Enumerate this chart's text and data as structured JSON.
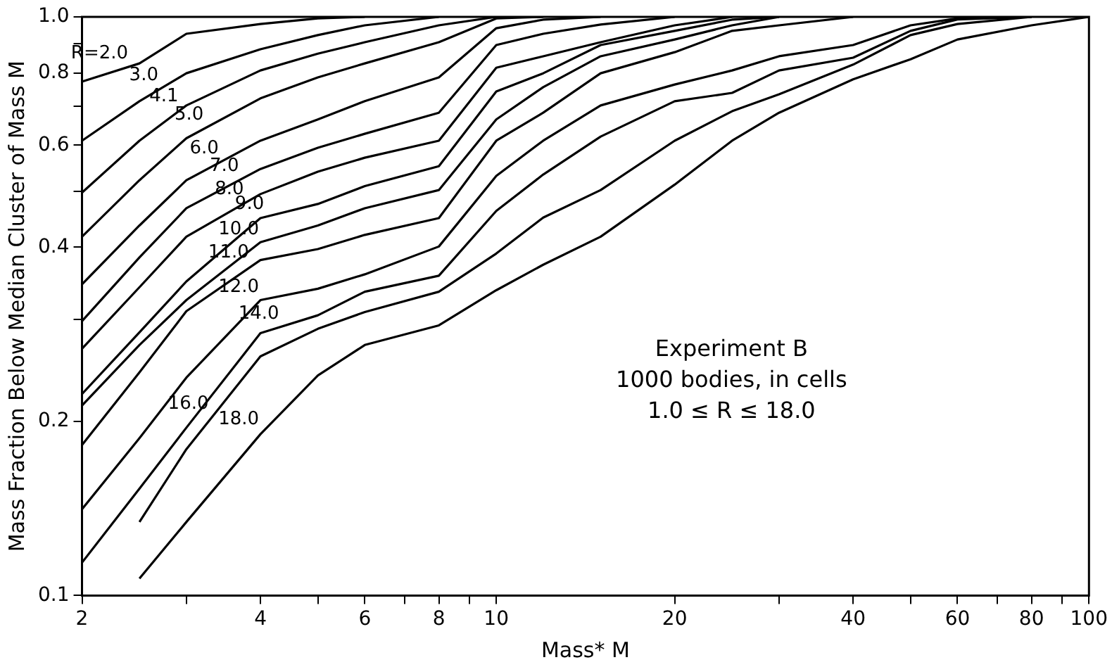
{
  "chart_data": {
    "type": "line",
    "xlabel": "Mass* M",
    "ylabel": "Mass Fraction Below Median Cluster of Mass M",
    "x": [
      2,
      2.5,
      3,
      4,
      5,
      6,
      8,
      10,
      12,
      15,
      20,
      25,
      30,
      40,
      50,
      60,
      80,
      100
    ],
    "series": [
      {
        "name": "R=2.0",
        "color": "#000000",
        "values": [
          0.773,
          0.831,
          0.935,
          0.972,
          0.994,
          1.0,
          null,
          null,
          null,
          null,
          null,
          null,
          null,
          null,
          null,
          null,
          null,
          null
        ]
      },
      {
        "name": "3.0",
        "color": "#000000",
        "values": [
          0.611,
          0.715,
          0.799,
          0.879,
          0.93,
          0.967,
          1.0,
          null,
          null,
          null,
          null,
          null,
          null,
          null,
          null,
          null,
          null,
          null
        ]
      },
      {
        "name": "4.1",
        "color": "#000000",
        "values": [
          0.497,
          0.611,
          0.703,
          0.808,
          0.864,
          0.904,
          0.967,
          1.0,
          null,
          null,
          null,
          null,
          null,
          null,
          null,
          null,
          null,
          null
        ]
      },
      {
        "name": "5.0",
        "color": "#000000",
        "values": [
          0.417,
          0.522,
          0.617,
          0.723,
          0.786,
          0.831,
          0.904,
          0.994,
          1.0,
          null,
          null,
          null,
          null,
          null,
          null,
          null,
          null,
          null
        ]
      },
      {
        "name": "6.0",
        "color": "#000000",
        "values": [
          0.345,
          0.436,
          0.522,
          0.611,
          0.665,
          0.715,
          0.786,
          0.956,
          0.989,
          1.0,
          null,
          null,
          null,
          null,
          null,
          null,
          null,
          null
        ]
      },
      {
        "name": "7.0",
        "color": "#000000",
        "values": [
          0.298,
          0.384,
          0.467,
          0.546,
          0.594,
          0.628,
          0.683,
          0.894,
          0.935,
          0.97,
          1.0,
          null,
          null,
          null,
          null,
          null,
          null,
          null
        ]
      },
      {
        "name": "8.0",
        "color": "#000000",
        "values": [
          0.267,
          0.341,
          0.417,
          0.494,
          0.54,
          0.571,
          0.611,
          0.817,
          0.855,
          0.904,
          0.967,
          1.0,
          null,
          null,
          null,
          null,
          null,
          null
        ]
      },
      {
        "name": "9.0",
        "color": "#000000",
        "values": [
          0.223,
          0.285,
          0.349,
          0.449,
          0.475,
          0.51,
          0.552,
          0.743,
          0.799,
          0.894,
          0.946,
          0.989,
          1.0,
          null,
          null,
          null,
          null,
          null
        ]
      },
      {
        "name": "10.0",
        "color": "#000000",
        "values": [
          0.213,
          0.271,
          0.324,
          0.408,
          0.436,
          0.467,
          0.502,
          0.665,
          0.756,
          0.855,
          0.914,
          0.967,
          1.0,
          null,
          null,
          null,
          null,
          null
        ]
      },
      {
        "name": "11.0",
        "color": "#000000",
        "values": [
          0.182,
          0.243,
          0.31,
          0.38,
          0.397,
          0.42,
          0.449,
          0.611,
          0.683,
          0.799,
          0.869,
          0.946,
          0.967,
          1.0,
          null,
          null,
          null,
          null
        ]
      },
      {
        "name": "12.0",
        "color": "#000000",
        "values": [
          0.141,
          0.187,
          0.238,
          0.324,
          0.339,
          0.359,
          0.401,
          0.531,
          0.611,
          0.703,
          0.764,
          0.808,
          0.855,
          0.894,
          0.967,
          0.994,
          1.0,
          null
        ]
      },
      {
        "name": "14.0",
        "color": "#000000",
        "values": [
          0.114,
          0.153,
          0.195,
          0.284,
          0.305,
          0.335,
          0.357,
          0.462,
          0.534,
          0.621,
          0.715,
          0.739,
          0.808,
          0.85,
          0.946,
          0.99,
          1.0,
          null
        ]
      },
      {
        "name": "16.0",
        "color": "#000000",
        "values": [
          null,
          0.134,
          0.179,
          0.259,
          0.289,
          0.309,
          0.335,
          0.39,
          0.45,
          0.502,
          0.611,
          0.687,
          0.735,
          0.827,
          0.93,
          0.972,
          1.0,
          null
        ]
      },
      {
        "name": "18.0",
        "color": "#000000",
        "values": [
          null,
          0.107,
          0.134,
          0.19,
          0.24,
          0.271,
          0.293,
          0.337,
          0.373,
          0.417,
          0.513,
          0.611,
          0.683,
          0.78,
          0.845,
          0.914,
          0.967,
          1.0
        ]
      }
    ],
    "xlim": [
      2,
      100
    ],
    "xticks": [
      2,
      {
        "value": 3,
        "label": null
      },
      4,
      {
        "value": 5,
        "label": null
      },
      6,
      {
        "value": 7,
        "label": null
      },
      8,
      {
        "value": 9,
        "label": null
      },
      10,
      20,
      {
        "value": 30,
        "label": null
      },
      40,
      {
        "value": 50,
        "label": null
      },
      60,
      {
        "value": 70,
        "label": null
      },
      80,
      {
        "value": 90,
        "label": null
      },
      100
    ],
    "ylim": [
      0.1,
      1.0
    ],
    "yticks": [
      0.1,
      0.2,
      {
        "value": 0.3,
        "label": null
      },
      0.4,
      {
        "value": 0.5,
        "label": null
      },
      0.6,
      {
        "value": 0.7,
        "label": null
      },
      0.8,
      {
        "value": 0.9,
        "label": null
      },
      {
        "value": 1.0,
        "label": "1.0"
      }
    ],
    "log": "xy",
    "grid": false,
    "legend": false,
    "marker": "none",
    "line_style": "solid",
    "annotations": [
      "Experiment B",
      "1000 bodies, in cells",
      "1.0 ≤ R ≤ 18.0"
    ]
  }
}
